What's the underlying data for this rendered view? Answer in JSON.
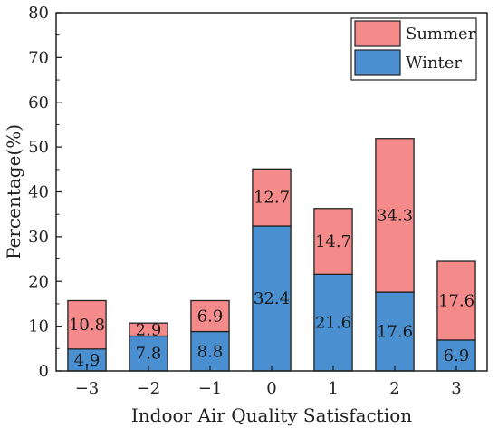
{
  "chart_data": {
    "type": "bar",
    "stacked": true,
    "categories": [
      "−3",
      "−2",
      "−1",
      "0",
      "1",
      "2",
      "3"
    ],
    "series": [
      {
        "name": "Winter",
        "color": "#4a8fd0",
        "values": [
          4.9,
          7.8,
          8.8,
          32.4,
          21.6,
          17.6,
          6.9
        ]
      },
      {
        "name": "Summer",
        "color": "#f58a8a",
        "values": [
          10.8,
          2.9,
          6.9,
          12.7,
          14.7,
          34.3,
          17.6
        ]
      }
    ],
    "xlabel": "Indoor Air Quality Satisfaction",
    "ylabel": "Percentage(%)",
    "ylim": [
      0,
      80
    ],
    "yticks": [
      0,
      10,
      20,
      30,
      40,
      50,
      60,
      70,
      80
    ],
    "legend_position": "top-right",
    "legend_order": [
      "Summer",
      "Winter"
    ],
    "grid": false
  }
}
